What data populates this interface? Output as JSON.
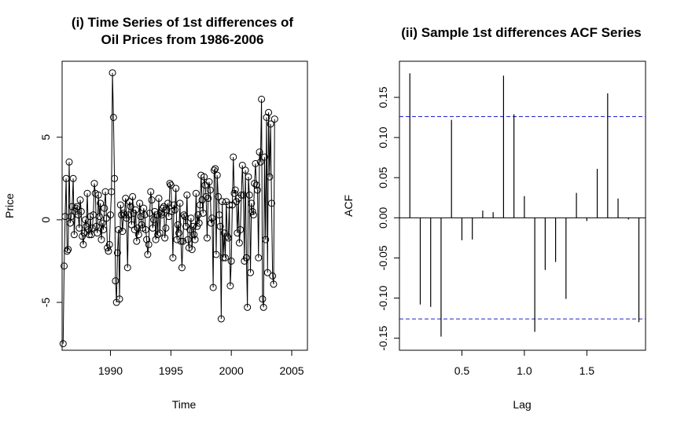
{
  "chart_data": [
    {
      "type": "line",
      "title": [
        "(i) Time Series of 1st differences of",
        "Oil Prices from 1986-2006"
      ],
      "xlabel": "Time",
      "ylabel": "Price",
      "xlim": [
        1986.0,
        2006.3
      ],
      "ylim": [
        -7.9,
        9.6
      ],
      "xticks": [
        1990,
        1995,
        2000,
        2005
      ],
      "yticks": [
        -5,
        0,
        5
      ],
      "markers": "open-circle",
      "line_color": "#000000",
      "series": [
        {
          "start": 1986.0833,
          "step": 0.0833333,
          "values": [
            -7.5,
            -2.8,
            0.2,
            2.5,
            -1.9,
            -1.8,
            3.5,
            -0.2,
            0.2,
            0.8,
            2.5,
            -0.9,
            0.5,
            0.7,
            0.8,
            0.3,
            -0.5,
            1.2,
            0.5,
            -1.0,
            -1.5,
            -0.8,
            0.0,
            -0.4,
            1.6,
            -0.6,
            -0.9,
            0.2,
            -0.9,
            -0.5,
            0.3,
            2.2,
            1.6,
            -0.4,
            -0.8,
            1.5,
            0.2,
            1.0,
            -1.2,
            -0.2,
            -0.6,
            0.7,
            1.7,
            0.1,
            -1.7,
            -1.9,
            -1.5,
            0.3,
            1.7,
            8.9,
            6.2,
            2.5,
            -3.7,
            -5.0,
            -2.0,
            -0.6,
            -4.8,
            0.9,
            0.3,
            -0.7,
            0.4,
            0.3,
            1.3,
            0.1,
            -2.9,
            0.3,
            1.1,
            0.8,
            -0.3,
            1.4,
            0.4,
            -0.6,
            0.6,
            -1.3,
            -0.5,
            -0.9,
            1.0,
            0.2,
            -0.3,
            -0.5,
            0.7,
            0.3,
            -0.6,
            -1.2,
            -2.1,
            -1.5,
            0.4,
            1.7,
            1.2,
            -0.5,
            0.0,
            0.5,
            -1.2,
            0.3,
            -0.9,
            1.3,
            -0.8,
            0.4,
            0.3,
            0.7,
            0.8,
            -1.1,
            -0.5,
            0.6,
            1.0,
            0.2,
            2.2,
            2.1,
            0.5,
            -2.3,
            0.9,
            0.6,
            1.9,
            -1.2,
            -0.3,
            -0.8,
            1.0,
            -1.3,
            -2.9,
            -1.3,
            0.3,
            0.2,
            -0.4,
            1.5,
            -1.2,
            -1.7,
            -0.6,
            0.1,
            -1.8,
            -0.4,
            -0.9,
            -1.2,
            1.6,
            -0.4,
            0.3,
            -0.2,
            0.9,
            2.7,
            1.2,
            0.4,
            2.6,
            2.1,
            1.4,
            -1.1,
            1.3,
            2.3,
            1.8,
            -0.2,
            0.1,
            -4.1,
            3.0,
            3.1,
            -2.1,
            2.7,
            1.4,
            0.3,
            -0.4,
            -6.0,
            1.1,
            -2.3,
            -0.8,
            -2.3,
            1.1,
            -1.0,
            -1.1,
            0.9,
            -4.0,
            -2.5,
            0.9,
            3.8,
            1.6,
            1.8,
            1.1,
            -0.8,
            1.3,
            -1.4,
            -0.6,
            1.5,
            3.3,
            1.5,
            -2.5,
            3.0,
            -2.3,
            -5.3,
            2.6,
            1.5,
            -3.2,
            1.0,
            0.5,
            0.3,
            2.2,
            3.4,
            2.1,
            1.8,
            -2.3,
            4.1,
            3.5,
            7.3,
            -4.8,
            -5.3,
            3.8,
            -1.2,
            6.2,
            -3.2,
            6.5,
            2.6,
            5.8,
            1.0,
            -3.4,
            -3.9,
            6.1
          ],
          "marker_size": 4
        }
      ]
    },
    {
      "type": "bar",
      "title": "(ii) Sample 1st differences ACF Series",
      "xlabel": "Lag",
      "ylabel": "ACF",
      "xlim": [
        0.0,
        1.97
      ],
      "ylim": [
        -0.165,
        0.195
      ],
      "xticks": [
        0.5,
        1.0,
        1.5
      ],
      "yticks": [
        -0.15,
        -0.1,
        -0.05,
        0.0,
        0.05,
        0.1,
        0.15
      ],
      "yticklabels": [
        "-0.15",
        "-0.10",
        "-0.05",
        "0.00",
        "0.05",
        "0.10",
        "0.15"
      ],
      "confidence_band": [
        -0.126,
        0.126
      ],
      "confidence_color": "#2222cc",
      "x": [
        0.0833,
        0.1667,
        0.25,
        0.3333,
        0.4167,
        0.5,
        0.5833,
        0.6667,
        0.75,
        0.8333,
        0.9167,
        1.0,
        1.0833,
        1.1667,
        1.25,
        1.3333,
        1.4167,
        1.5,
        1.5833,
        1.6667,
        1.75,
        1.8333,
        1.9167
      ],
      "values": [
        0.18,
        -0.108,
        -0.111,
        -0.148,
        0.122,
        -0.028,
        -0.027,
        0.009,
        0.007,
        0.177,
        0.129,
        0.027,
        -0.142,
        -0.065,
        -0.055,
        -0.101,
        0.031,
        -0.004,
        0.061,
        0.155,
        0.024,
        -0.002,
        -0.13
      ]
    }
  ]
}
